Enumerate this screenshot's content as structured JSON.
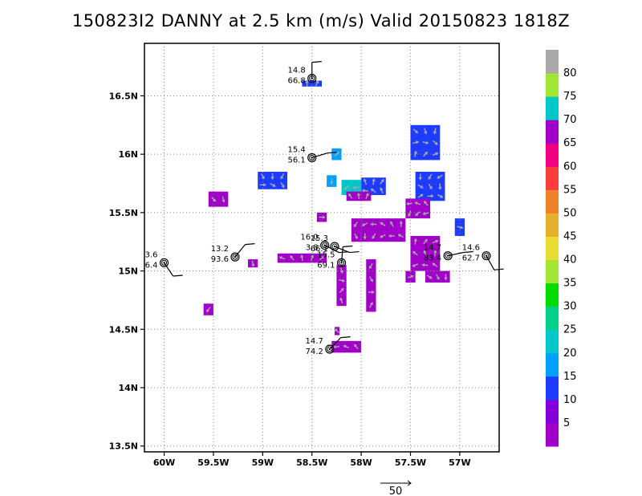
{
  "chart_data": {
    "type": "scatter",
    "title": "150823I2 DANNY at 2.5 km (m/s) Valid 20150823 1818Z",
    "x_ticks": [
      "60W",
      "59.5W",
      "59W",
      "58.5W",
      "58W",
      "57.5W",
      "57W"
    ],
    "x_tick_values": [
      -60,
      -59.5,
      -59,
      -58.5,
      -58,
      -57.5,
      -57
    ],
    "y_ticks": [
      "13.5N",
      "14N",
      "14.5N",
      "15N",
      "15.5N",
      "16N",
      "16.5N"
    ],
    "y_tick_values": [
      13.5,
      14,
      14.5,
      15,
      15.5,
      16,
      16.5
    ],
    "xlim": [
      -60.2,
      -56.6
    ],
    "ylim": [
      13.45,
      16.95
    ],
    "grid": true,
    "colorbar": {
      "labels": [
        "5",
        "10",
        "15",
        "20",
        "25",
        "30",
        "35",
        "40",
        "45",
        "50",
        "55",
        "60",
        "65",
        "70",
        "75",
        "80"
      ],
      "colors": [
        "#a000c8",
        "#8200dc",
        "#1e3cff",
        "#00a0ff",
        "#00c8c8",
        "#00d28c",
        "#00dc00",
        "#a0e632",
        "#e6dc32",
        "#e6af2d",
        "#f08228",
        "#fa3c3c",
        "#f00082",
        "#a000c8",
        "#00c8c8",
        "#a0e632",
        "#aaaaaa"
      ]
    },
    "vector_scale_label": "50",
    "stations": [
      {
        "lon": -58.5,
        "lat": 16.65,
        "label1": "14.8",
        "label2": "66.8"
      },
      {
        "lon": -58.5,
        "lat": 15.97,
        "label1": "15.4",
        "label2": "56.1"
      },
      {
        "lon": -60.0,
        "lat": 15.07,
        "label1": "3.6",
        "label2": "6.4"
      },
      {
        "lon": -59.28,
        "lat": 15.12,
        "label1": "13.2",
        "label2": "93.6"
      },
      {
        "lon": -58.27,
        "lat": 15.21,
        "label1": "15.3",
        "label2": "66.1"
      },
      {
        "lon": -58.2,
        "lat": 15.07,
        "label1": "15.5",
        "label2": "69.1"
      },
      {
        "lon": -57.12,
        "lat": 15.13,
        "label1": "14.7",
        "label2": "83.4"
      },
      {
        "lon": -56.73,
        "lat": 15.13,
        "label1": "14.6",
        "label2": "62.7"
      },
      {
        "lon": -58.32,
        "lat": 14.33,
        "label1": "14.7",
        "label2": "74.2"
      },
      {
        "lon": -58.37,
        "lat": 15.22,
        "label1": "16.0",
        "label2": "3.8"
      }
    ],
    "wind_patches": [
      {
        "lon": [
          -59.05,
          -58.75
        ],
        "lat": [
          15.7,
          15.85
        ],
        "speed": 10
      },
      {
        "lon": [
          -59.55,
          -59.35
        ],
        "lat": [
          15.55,
          15.68
        ],
        "speed": 7
      },
      {
        "lon": [
          -58.35,
          -58.25
        ],
        "lat": [
          15.72,
          15.82
        ],
        "speed": 15
      },
      {
        "lon": [
          -58.2,
          -58.0
        ],
        "lat": [
          15.65,
          15.78
        ],
        "speed": 18
      },
      {
        "lon": [
          -58.0,
          -57.75
        ],
        "lat": [
          15.65,
          15.8
        ],
        "speed": 10
      },
      {
        "lon": [
          -58.15,
          -57.9
        ],
        "lat": [
          15.6,
          15.68
        ],
        "speed": 7
      },
      {
        "lon": [
          -57.5,
          -57.2
        ],
        "lat": [
          15.95,
          16.25
        ],
        "speed": 10
      },
      {
        "lon": [
          -57.45,
          -57.15
        ],
        "lat": [
          15.6,
          15.85
        ],
        "speed": 10
      },
      {
        "lon": [
          -57.05,
          -56.95
        ],
        "lat": [
          15.3,
          15.45
        ],
        "speed": 10
      },
      {
        "lon": [
          -58.1,
          -57.55
        ],
        "lat": [
          15.25,
          15.45
        ],
        "speed": 5
      },
      {
        "lon": [
          -57.55,
          -57.3
        ],
        "lat": [
          15.45,
          15.62
        ],
        "speed": 5
      },
      {
        "lon": [
          -57.5,
          -57.2
        ],
        "lat": [
          15.0,
          15.3
        ],
        "speed": 5
      },
      {
        "lon": [
          -58.85,
          -58.35
        ],
        "lat": [
          15.07,
          15.15
        ],
        "speed": 5
      },
      {
        "lon": [
          -58.25,
          -58.15
        ],
        "lat": [
          14.7,
          15.05
        ],
        "speed": 5
      },
      {
        "lon": [
          -57.95,
          -57.85
        ],
        "lat": [
          14.65,
          15.1
        ],
        "speed": 5
      },
      {
        "lon": [
          -57.55,
          -57.45
        ],
        "lat": [
          14.9,
          15.0
        ],
        "speed": 5
      },
      {
        "lon": [
          -57.35,
          -57.1
        ],
        "lat": [
          14.9,
          15.0
        ],
        "speed": 5
      },
      {
        "lon": [
          -59.15,
          -59.05
        ],
        "lat": [
          15.03,
          15.1
        ],
        "speed": 5
      },
      {
        "lon": [
          -59.6,
          -59.5
        ],
        "lat": [
          14.62,
          14.72
        ],
        "speed": 5
      },
      {
        "lon": [
          -58.3,
          -58.0
        ],
        "lat": [
          14.3,
          14.4
        ],
        "speed": 5
      },
      {
        "lon": [
          -58.27,
          -58.22
        ],
        "lat": [
          14.45,
          14.52
        ],
        "speed": 5
      },
      {
        "lon": [
          -58.6,
          -58.4
        ],
        "lat": [
          16.58,
          16.63
        ],
        "speed": 10
      },
      {
        "lon": [
          -58.3,
          -58.2
        ],
        "lat": [
          15.95,
          16.05
        ],
        "speed": 15
      },
      {
        "lon": [
          -58.45,
          -58.35
        ],
        "lat": [
          15.42,
          15.5
        ],
        "speed": 5
      }
    ]
  }
}
